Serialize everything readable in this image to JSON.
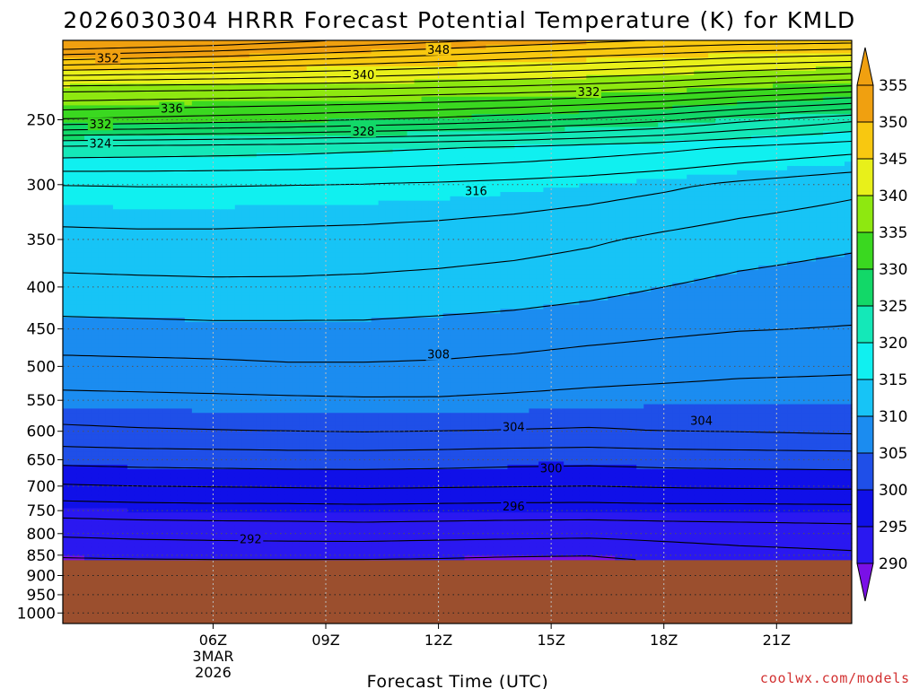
{
  "chart_data": {
    "type": "heatmap",
    "title": "2026030304 HRRR Forecast Potential Temperature (K) for KMLD",
    "xlabel": "Forecast Time (UTC)",
    "ylabel": "",
    "credit": "coolwx.com/models",
    "x_range_hours": [
      2,
      23
    ],
    "x_ticks": [
      {
        "hour": 6,
        "label": "06Z",
        "sub1": "3MAR",
        "sub2": "2026"
      },
      {
        "hour": 9,
        "label": "09Z"
      },
      {
        "hour": 12,
        "label": "12Z"
      },
      {
        "hour": 15,
        "label": "15Z"
      },
      {
        "hour": 18,
        "label": "18Z"
      },
      {
        "hour": 21,
        "label": "21Z"
      }
    ],
    "y_scale": "log-pressure",
    "y_range_hpa": [
      1030,
      200
    ],
    "y_ticks": [
      250,
      300,
      350,
      400,
      450,
      500,
      550,
      600,
      650,
      700,
      750,
      800,
      850,
      900,
      950,
      1000
    ],
    "surface_pressure_hpa": 862,
    "colorbar": {
      "levels": [
        290,
        295,
        300,
        305,
        310,
        315,
        320,
        325,
        330,
        335,
        340,
        345,
        350,
        355
      ],
      "colors": [
        "#7a10e6",
        "#2a18f0",
        "#1010e8",
        "#1f4fe8",
        "#1b8cf0",
        "#17c4f6",
        "#10f0f0",
        "#14e8b8",
        "#12d868",
        "#3ad820",
        "#8ee810",
        "#e8f01a",
        "#f8c810",
        "#f0a010"
      ]
    },
    "contour_interval_K": 2,
    "contour_profiles": {
      "hours": [
        2,
        4,
        6,
        8,
        10,
        12,
        14,
        16,
        18,
        20,
        23
      ],
      "data": [
        {
          "p": 862,
          "theta": [
            289.6,
            289.8,
            289.9,
            289.9,
            289.9,
            289.8,
            289.6,
            289.5,
            290.2,
            290.8,
            291.3
          ]
        },
        {
          "p": 850,
          "theta": [
            290.4,
            290.6,
            290.7,
            290.7,
            290.6,
            290.4,
            290.2,
            290.1,
            290.8,
            291.3,
            291.7
          ]
        },
        {
          "p": 800,
          "theta": [
            292.3,
            292.5,
            292.6,
            292.7,
            292.8,
            292.7,
            292.6,
            292.5,
            292.7,
            292.9,
            293.1
          ]
        },
        {
          "p": 750,
          "theta": [
            294.8,
            295.0,
            295.1,
            295.1,
            295.2,
            295.1,
            295.0,
            295.0,
            295.1,
            295.1,
            295.2
          ]
        },
        {
          "p": 700,
          "theta": [
            297.8,
            298.0,
            298.1,
            298.2,
            298.3,
            298.2,
            298.1,
            298.0,
            298.2,
            298.3,
            298.4
          ]
        },
        {
          "p": 650,
          "theta": [
            300.6,
            300.8,
            300.9,
            301.0,
            301.0,
            300.9,
            300.7,
            300.6,
            300.8,
            300.9,
            301.0
          ]
        },
        {
          "p": 600,
          "theta": [
            303.6,
            303.8,
            303.9,
            304.0,
            304.1,
            304.0,
            303.9,
            303.8,
            304.0,
            304.1,
            304.3
          ]
        },
        {
          "p": 550,
          "theta": [
            305.4,
            305.5,
            305.6,
            305.7,
            305.8,
            305.8,
            305.6,
            305.4,
            305.2,
            305.1,
            305.1
          ]
        },
        {
          "p": 500,
          "theta": [
            307.4,
            307.5,
            307.6,
            307.8,
            307.8,
            307.7,
            307.4,
            307.0,
            306.8,
            306.5,
            306.3
          ]
        },
        {
          "p": 450,
          "theta": [
            309.4,
            309.5,
            309.6,
            309.6,
            309.6,
            309.4,
            309.2,
            308.8,
            308.4,
            308.1,
            307.9
          ]
        },
        {
          "p": 400,
          "theta": [
            311.4,
            311.5,
            311.6,
            311.6,
            311.5,
            311.3,
            311.0,
            310.6,
            310.0,
            309.5,
            309.0
          ]
        },
        {
          "p": 350,
          "theta": [
            313.4,
            313.5,
            313.5,
            313.4,
            313.3,
            313.1,
            312.8,
            312.3,
            311.6,
            311.0,
            310.4
          ]
        },
        {
          "p": 300,
          "theta": [
            316.0,
            316.1,
            316.1,
            316.0,
            315.9,
            315.7,
            315.4,
            315.0,
            314.4,
            313.6,
            312.6
          ]
        },
        {
          "p": 270,
          "theta": [
            321.6,
            321.4,
            321.2,
            321.0,
            320.6,
            320.2,
            319.8,
            319.2,
            318.6,
            317.8,
            316.8
          ]
        },
        {
          "p": 250,
          "theta": [
            331.8,
            331.4,
            331.0,
            330.6,
            330.0,
            329.4,
            328.6,
            327.6,
            326.4,
            324.6,
            322.4
          ]
        },
        {
          "p": 230,
          "theta": [
            338.4,
            338.2,
            338.0,
            337.8,
            337.6,
            337.2,
            336.8,
            336.2,
            335.4,
            334.2,
            332.6
          ]
        },
        {
          "p": 210,
          "theta": [
            350.8,
            350.2,
            349.6,
            348.8,
            348.0,
            347.2,
            346.4,
            345.6,
            344.8,
            344.0,
            343.2
          ]
        }
      ]
    },
    "contour_labels": [
      {
        "value": "352",
        "hour": 3.2,
        "p": 210
      },
      {
        "value": "348",
        "hour": 12.0,
        "p": 205
      },
      {
        "value": "340",
        "hour": 10.0,
        "p": 220
      },
      {
        "value": "336",
        "hour": 4.9,
        "p": 242
      },
      {
        "value": "332",
        "hour": 3.0,
        "p": 253
      },
      {
        "value": "332",
        "hour": 16.0,
        "p": 231
      },
      {
        "value": "328",
        "hour": 10.0,
        "p": 258
      },
      {
        "value": "324",
        "hour": 3.0,
        "p": 267
      },
      {
        "value": "316",
        "hour": 13.0,
        "p": 305
      },
      {
        "value": "308",
        "hour": 12.0,
        "p": 483
      },
      {
        "value": "304",
        "hour": 14.0,
        "p": 592
      },
      {
        "value": "304",
        "hour": 19.0,
        "p": 582
      },
      {
        "value": "300",
        "hour": 15.0,
        "p": 665
      },
      {
        "value": "296",
        "hour": 14.0,
        "p": 740
      },
      {
        "value": "292",
        "hour": 7.0,
        "p": 812
      }
    ]
  }
}
